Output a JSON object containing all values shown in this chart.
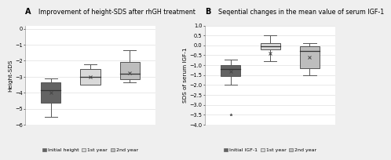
{
  "panel_A": {
    "title": "Improvement of height-SDS after rhGH treatment",
    "ylabel": "Height-SDS",
    "ylim": [
      -6,
      0.2
    ],
    "yticks": [
      0,
      -1,
      -2,
      -3,
      -4,
      -5,
      -6
    ],
    "boxes": [
      {
        "label": "Initial height",
        "color": "#636363",
        "whislo": -5.5,
        "q1": -4.6,
        "med": -3.85,
        "q3": -3.35,
        "whishi": -3.1,
        "mean": -4.0,
        "fliers": []
      },
      {
        "label": "1st year",
        "color": "#d9d9d9",
        "whislo": -3.05,
        "q1": -3.5,
        "med": -3.0,
        "q3": -2.5,
        "whishi": -2.2,
        "mean": -3.0,
        "fliers": []
      },
      {
        "label": "2nd year",
        "color": "#bdbdbd",
        "whislo": -3.35,
        "q1": -3.15,
        "med": -2.8,
        "q3": -2.1,
        "whishi": -1.35,
        "mean": -2.75,
        "fliers": []
      }
    ],
    "legend_labels": [
      "Initial height",
      "1st year",
      "2nd year"
    ],
    "legend_colors": [
      "#636363",
      "#d9d9d9",
      "#bdbdbd"
    ]
  },
  "panel_B": {
    "title": "Seqential changes in the mean value of serum IGF-1",
    "ylabel": "SDS of serum IGF-1",
    "ylim": [
      -4,
      1.0
    ],
    "yticks": [
      1,
      0.5,
      0,
      -0.5,
      -1,
      -1.5,
      -2,
      -2.5,
      -3,
      -3.5,
      -4
    ],
    "boxes": [
      {
        "label": "Initial IGF-1",
        "color": "#636363",
        "whislo": -2.0,
        "q1": -1.55,
        "med": -1.2,
        "q3": -1.0,
        "whishi": -0.7,
        "mean": -1.3,
        "fliers": [
          -3.5
        ]
      },
      {
        "label": "1st year",
        "color": "#d9d9d9",
        "whislo": -0.8,
        "q1": -0.2,
        "med": -0.05,
        "q3": 0.1,
        "whishi": 0.5,
        "mean": -0.4,
        "fliers": []
      },
      {
        "label": "2nd year",
        "color": "#bdbdbd",
        "whislo": -1.5,
        "q1": -1.15,
        "med": -0.3,
        "q3": -0.05,
        "whishi": 0.1,
        "mean": -0.6,
        "fliers": []
      }
    ],
    "legend_labels": [
      "Initial IGF-1",
      "1st year",
      "2nd year"
    ],
    "legend_colors": [
      "#636363",
      "#d9d9d9",
      "#bdbdbd"
    ]
  },
  "bg_color": "#efefef",
  "panel_bg": "#ffffff",
  "box_width": 0.5,
  "linewidth": 0.7,
  "fontsize_title": 5.8,
  "fontsize_letter": 7.0,
  "fontsize_label": 5.2,
  "fontsize_tick": 4.8,
  "fontsize_legend": 4.5
}
